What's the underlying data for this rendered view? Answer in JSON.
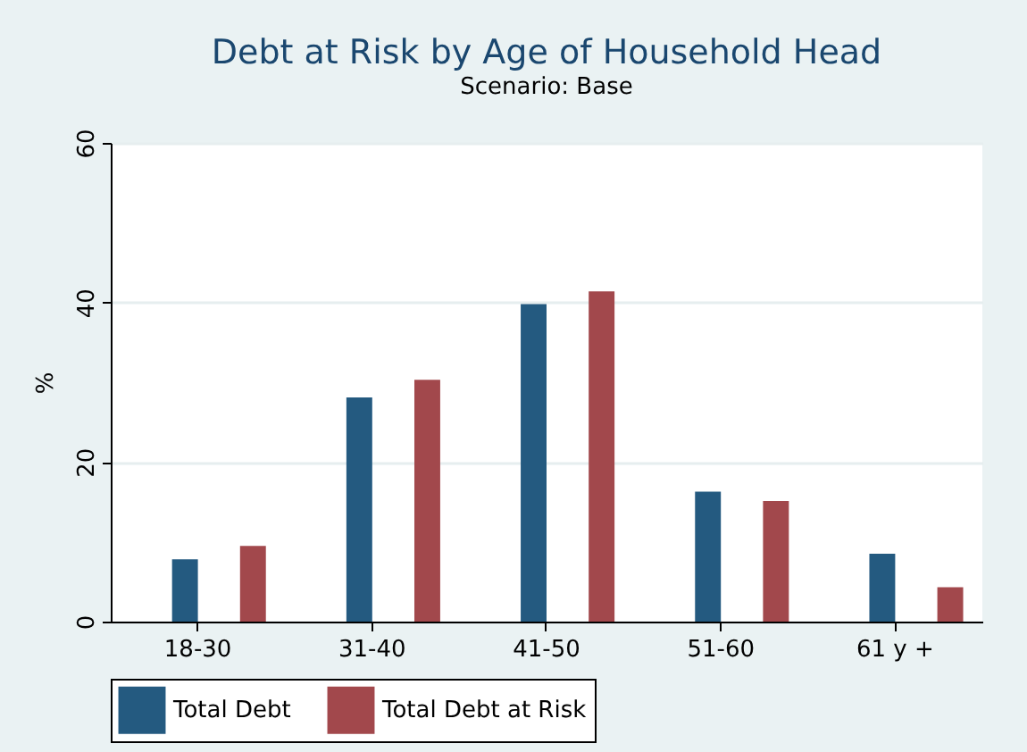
{
  "chart_data": {
    "type": "bar",
    "title": "Debt at Risk by Age of Household Head",
    "subtitle": "Scenario: Base",
    "ylabel": "%",
    "categories": [
      "18-30",
      "31-40",
      "41-50",
      "51-60",
      "61 y +"
    ],
    "series": [
      {
        "name": "Total Debt",
        "color": "#245a80",
        "values": [
          7.8,
          28.1,
          39.8,
          16.3,
          8.5
        ]
      },
      {
        "name": "Total Debt at Risk",
        "color": "#a2484c",
        "values": [
          9.5,
          30.3,
          41.4,
          15.1,
          4.3
        ]
      }
    ],
    "ylim": [
      0,
      60
    ],
    "yticks": [
      0,
      20,
      40,
      60
    ],
    "grid": "y",
    "legend": "bottom"
  }
}
